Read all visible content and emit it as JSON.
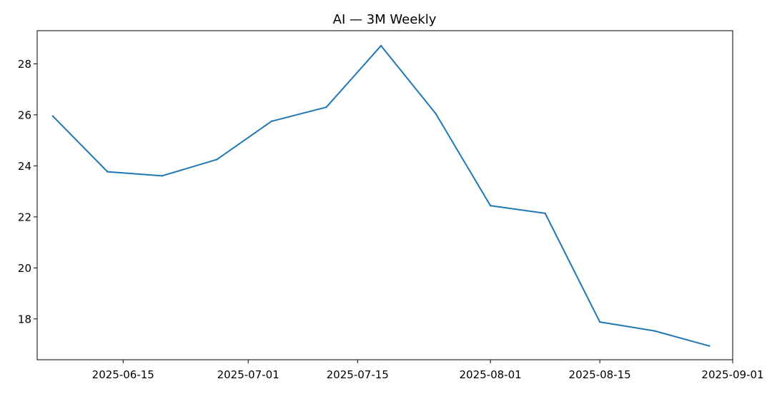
{
  "chart_data": {
    "type": "line",
    "title": "AI — 3M Weekly",
    "xlabel": "",
    "ylabel": "",
    "x_axis_type": "date",
    "xlim": [
      "2025-06-04",
      "2025-09-01"
    ],
    "ylim": [
      16.4,
      29.3
    ],
    "grid": false,
    "legend": "none",
    "x_ticks": [
      {
        "value": "2025-06-15",
        "label": "2025-06-15"
      },
      {
        "value": "2025-07-01",
        "label": "2025-07-01"
      },
      {
        "value": "2025-07-15",
        "label": "2025-07-15"
      },
      {
        "value": "2025-08-01",
        "label": "2025-08-01"
      },
      {
        "value": "2025-08-15",
        "label": "2025-08-15"
      },
      {
        "value": "2025-09-01",
        "label": "2025-09-01"
      }
    ],
    "y_ticks": [
      {
        "value": 18,
        "label": "18"
      },
      {
        "value": 20,
        "label": "20"
      },
      {
        "value": 22,
        "label": "22"
      },
      {
        "value": 24,
        "label": "24"
      },
      {
        "value": 26,
        "label": "26"
      },
      {
        "value": 28,
        "label": "28"
      }
    ],
    "series": [
      {
        "color": "#1f77b4",
        "points": [
          {
            "x": "2025-06-06",
            "y": 25.95
          },
          {
            "x": "2025-06-13",
            "y": 23.77
          },
          {
            "x": "2025-06-20",
            "y": 23.61
          },
          {
            "x": "2025-06-27",
            "y": 24.25
          },
          {
            "x": "2025-07-04",
            "y": 25.75
          },
          {
            "x": "2025-07-11",
            "y": 26.3
          },
          {
            "x": "2025-07-18",
            "y": 28.71
          },
          {
            "x": "2025-07-25",
            "y": 26.05
          },
          {
            "x": "2025-08-01",
            "y": 22.44
          },
          {
            "x": "2025-08-08",
            "y": 22.14
          },
          {
            "x": "2025-08-15",
            "y": 17.88
          },
          {
            "x": "2025-08-22",
            "y": 17.53
          },
          {
            "x": "2025-08-29",
            "y": 16.94
          }
        ]
      }
    ]
  }
}
